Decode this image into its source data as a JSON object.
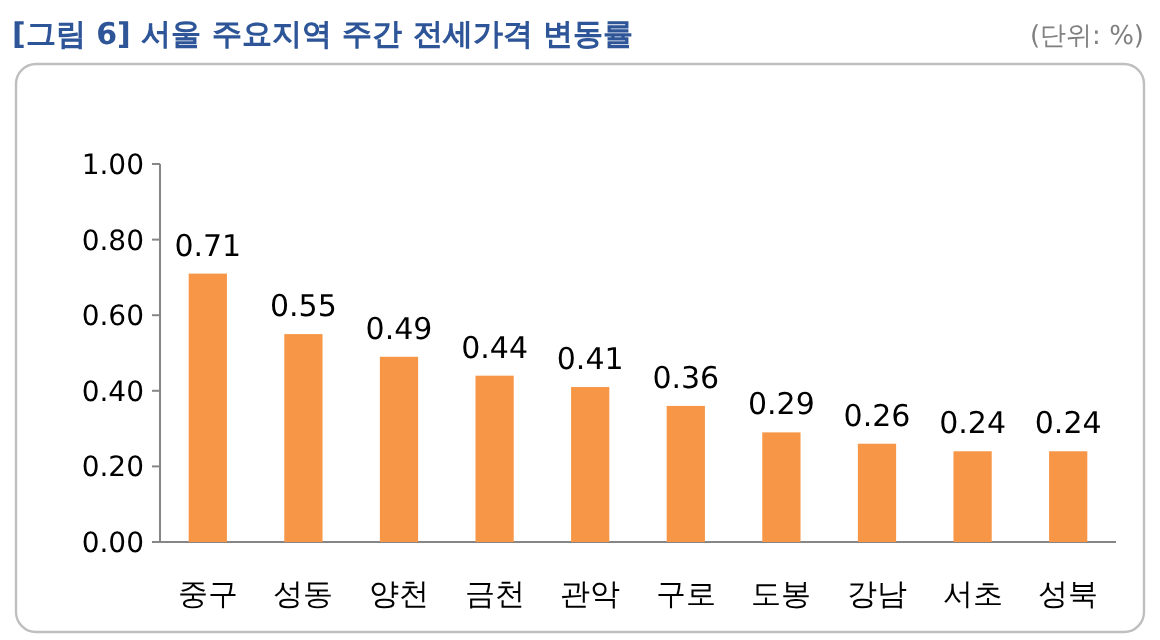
{
  "chart_data": {
    "type": "bar",
    "title": "[그림 6] 서울 주요지역 주간 전세가격 변동률",
    "annotations": [
      "(단위: %)"
    ],
    "categories": [
      "중구",
      "성동",
      "양천",
      "금천",
      "관악",
      "구로",
      "도봉",
      "강남",
      "서초",
      "성북"
    ],
    "values": [
      0.71,
      0.55,
      0.49,
      0.44,
      0.41,
      0.36,
      0.29,
      0.26,
      0.24,
      0.24
    ],
    "color": "#f79646",
    "data_labels": true,
    "ylim": [
      0,
      1
    ],
    "yticks": [
      {
        "value": 0,
        "label": "0.00"
      },
      {
        "value": 0.2,
        "label": "0.20"
      },
      {
        "value": 0.4,
        "label": "0.40"
      },
      {
        "value": 0.6,
        "label": "0.60"
      },
      {
        "value": 0.8,
        "label": "0.80"
      },
      {
        "value": 1,
        "label": "1.00"
      }
    ]
  }
}
